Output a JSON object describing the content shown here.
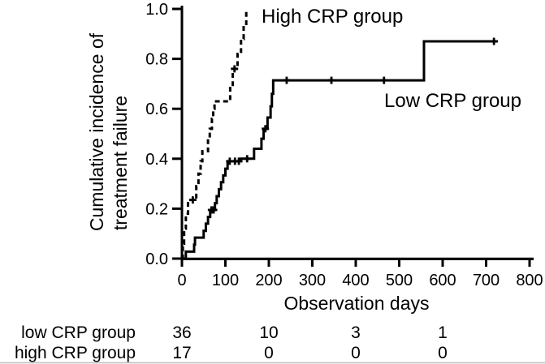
{
  "chart_data": {
    "type": "line",
    "subtype": "kaplan-meier-step",
    "title": "",
    "xlabel": "Observation days",
    "ylabel_lines": [
      "Cumulative incidence of",
      "treatment failure"
    ],
    "xlim": [
      0,
      800
    ],
    "ylim": [
      0.0,
      1.0
    ],
    "grid": false,
    "legend_position": "inline-annotations",
    "xticks": [
      0,
      100,
      200,
      300,
      400,
      500,
      600,
      700,
      800
    ],
    "ytick_labels": [
      "0.0",
      "0.2",
      "0.4",
      "0.6",
      "0.8",
      "1.0"
    ],
    "line_color": "#000000",
    "series": [
      {
        "name": "High CRP group",
        "line_style": "dashed",
        "color": "#000000",
        "steps": [
          [
            0,
            0
          ],
          [
            2,
            0.06
          ],
          [
            5,
            0.12
          ],
          [
            9,
            0.18
          ],
          [
            14,
            0.235
          ],
          [
            33,
            0.29
          ],
          [
            38,
            0.34
          ],
          [
            43,
            0.39
          ],
          [
            47,
            0.43
          ],
          [
            60,
            0.48
          ],
          [
            64,
            0.52
          ],
          [
            69,
            0.56
          ],
          [
            72,
            0.6
          ],
          [
            75,
            0.63
          ],
          [
            111,
            0.69
          ],
          [
            117,
            0.76
          ],
          [
            128,
            0.82
          ],
          [
            136,
            0.88
          ],
          [
            142,
            0.94
          ],
          [
            148,
            1.0
          ]
        ],
        "end_day": 148,
        "censor_marks": [
          [
            25,
            0.235
          ],
          [
            121,
            0.76
          ]
        ]
      },
      {
        "name": "Low CRP group",
        "line_style": "solid",
        "color": "#000000",
        "steps": [
          [
            0,
            0
          ],
          [
            9,
            0.028
          ],
          [
            28,
            0.056
          ],
          [
            30,
            0.084
          ],
          [
            50,
            0.111
          ],
          [
            55,
            0.14
          ],
          [
            60,
            0.167
          ],
          [
            65,
            0.195
          ],
          [
            76,
            0.222
          ],
          [
            80,
            0.25
          ],
          [
            85,
            0.278
          ],
          [
            90,
            0.306
          ],
          [
            95,
            0.333
          ],
          [
            100,
            0.36
          ],
          [
            105,
            0.39
          ],
          [
            135,
            0.4
          ],
          [
            166,
            0.44
          ],
          [
            183,
            0.48
          ],
          [
            188,
            0.52
          ],
          [
            197,
            0.565
          ],
          [
            204,
            0.61
          ],
          [
            207,
            0.66
          ],
          [
            210,
            0.714
          ],
          [
            557,
            0.87
          ]
        ],
        "end_day": 727,
        "censor_marks": [
          [
            68,
            0.195
          ],
          [
            73,
            0.195
          ],
          [
            110,
            0.39
          ],
          [
            122,
            0.39
          ],
          [
            131,
            0.39
          ],
          [
            150,
            0.4
          ],
          [
            192,
            0.52
          ],
          [
            241,
            0.714
          ],
          [
            344,
            0.714
          ],
          [
            465,
            0.714
          ],
          [
            718,
            0.87
          ]
        ]
      }
    ],
    "risk_table": {
      "time_points": [
        0,
        200,
        400,
        600
      ],
      "rows": [
        {
          "label": "low CRP group",
          "values": [
            "36",
            "10",
            "3",
            "1"
          ]
        },
        {
          "label": "high CRP group",
          "values": [
            "17",
            "0",
            "0",
            "0"
          ]
        }
      ]
    }
  }
}
